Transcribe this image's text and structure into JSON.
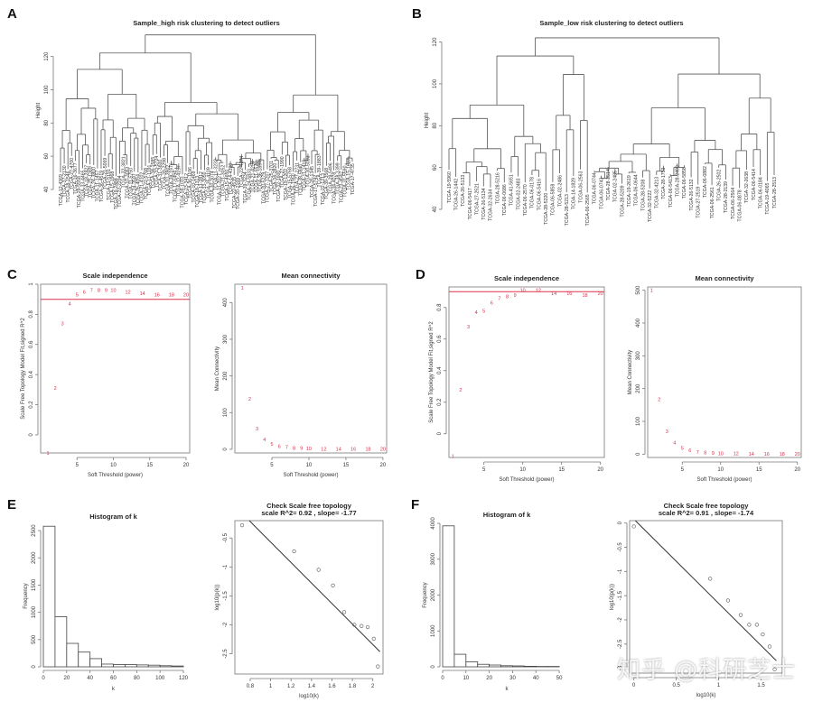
{
  "figure": {
    "panel_letters": [
      "A",
      "B",
      "C",
      "D",
      "E",
      "F"
    ],
    "watermark": "知乎 @科研芝士"
  },
  "chart_data": [
    {
      "id": "A",
      "type": "dendrogram",
      "title": "Sample_high risk clustering to detect outliers",
      "ylabel": "Height",
      "yticks": [
        40,
        60,
        80,
        100,
        120
      ],
      "ylim": [
        40,
        135
      ],
      "root_height": 133,
      "leaf_count": 80,
      "visible_labels": [
        "TCGA-14-0871",
        "TCGA-28-5218",
        "TCGA-06-5410",
        "TCGA-06-5856",
        "TCGA-27-1835",
        "TCGA-12-3616",
        "TCGA-06-3129",
        "TCGA-19-1390",
        "TCGA-26-3652"
      ],
      "major_merges": [
        {
          "height": 133,
          "desc": "root"
        },
        {
          "height": 123,
          "desc": "main split"
        },
        {
          "height": 114
        },
        {
          "height": 110
        },
        {
          "height": 105
        },
        {
          "height": 99,
          "desc": "outlier branch TCGA-06-5410"
        },
        {
          "height": 97
        }
      ]
    },
    {
      "id": "B",
      "type": "dendrogram",
      "title": "Sample_low risk clustering to detect outliers",
      "ylabel": "Height",
      "yticks": [
        40,
        60,
        80,
        100,
        120
      ],
      "ylim": [
        40,
        125
      ],
      "root_height": 122,
      "leaves": [
        "TCGA-19-5960",
        "TCGA-26-1442",
        "TCGA-26-5133",
        "TCGA-06-5417",
        "TCGA-27-2521",
        "TCGA-26-5134",
        "TCGA-32-2634",
        "TCGA-28-5216",
        "TCGA-06-0686",
        "TCGA-41-5651",
        "TCGA-02-2483",
        "TCGA-06-2570",
        "TCGA-06-0178",
        "TCGA-06-5416",
        "TCGA-28-5220",
        "TCGA-06-5858",
        "TCGA-02-2486",
        "TCGA-28-5213",
        "TCGA-14-1829",
        "TCGA-06-2563",
        "TCGA-06-2565",
        "TCGA-06-0744",
        "TCGA-06-0743",
        "TCGA-28-2514",
        "TCGA-02-2485",
        "TCGA-28-5209",
        "TCGA-19-2619",
        "TCGA-06-0644",
        "TCGA-28-5208",
        "TCGA-32-5222",
        "TCGA-32-4213",
        "TCGA-28-1753",
        "TCGA-06-5413",
        "TCGA-28-2499",
        "TCGA-06-5858",
        "TCGA-26-5132",
        "TCGA-27-2519",
        "TCGA-06-0882",
        "TCGA-06-2561",
        "TCGA-26-2502",
        "TCGA-28-2139",
        "TCGA-06-2564",
        "TCGA-06-0878",
        "TCGA-32-2638",
        "TCGA-06-5414",
        "TCGA-06-0184",
        "TCGA-19-4065",
        "TCGA-28-2513"
      ],
      "major_merges": [
        {
          "height": 122,
          "desc": "root"
        },
        {
          "height": 107
        },
        {
          "height": 103
        },
        {
          "height": 97
        },
        {
          "height": 93
        },
        {
          "height": 90
        },
        {
          "height": 84
        }
      ]
    },
    {
      "id": "C-left",
      "type": "scatter",
      "title": "Scale independence",
      "xlabel": "Soft Threshold (power)",
      "ylabel": "Scale Free Topology Model Fit,signed R^2",
      "xlim": [
        0,
        20.5
      ],
      "ylim": [
        -0.12,
        1.0
      ],
      "xticks": [
        5,
        10,
        15,
        20
      ],
      "yticks": [
        0.0,
        0.2,
        0.4,
        0.6,
        0.8,
        1.0
      ],
      "hline": 0.9,
      "hline_color": "#e0304a",
      "point_color": "#d6304a",
      "points": [
        {
          "x": 1,
          "y": -0.12
        },
        {
          "x": 2,
          "y": 0.31
        },
        {
          "x": 3,
          "y": 0.74
        },
        {
          "x": 4,
          "y": 0.87
        },
        {
          "x": 5,
          "y": 0.93
        },
        {
          "x": 6,
          "y": 0.95
        },
        {
          "x": 7,
          "y": 0.96
        },
        {
          "x": 8,
          "y": 0.96
        },
        {
          "x": 9,
          "y": 0.96
        },
        {
          "x": 10,
          "y": 0.96
        },
        {
          "x": 12,
          "y": 0.95
        },
        {
          "x": 14,
          "y": 0.94
        },
        {
          "x": 16,
          "y": 0.93
        },
        {
          "x": 18,
          "y": 0.93
        },
        {
          "x": 20,
          "y": 0.93
        }
      ]
    },
    {
      "id": "C-right",
      "type": "scatter",
      "title": "Mean connectivity",
      "xlabel": "Soft Threshold (power)",
      "ylabel": "Mean Connectivity",
      "xlim": [
        0,
        20.5
      ],
      "ylim": [
        -10,
        450
      ],
      "xticks": [
        5,
        10,
        15,
        20
      ],
      "yticks": [
        0,
        100,
        200,
        300,
        400
      ],
      "point_color": "#d6304a",
      "points": [
        {
          "x": 1,
          "y": 440
        },
        {
          "x": 2,
          "y": 137
        },
        {
          "x": 3,
          "y": 56
        },
        {
          "x": 4,
          "y": 27
        },
        {
          "x": 5,
          "y": 15
        },
        {
          "x": 6,
          "y": 9
        },
        {
          "x": 7,
          "y": 6
        },
        {
          "x": 8,
          "y": 4
        },
        {
          "x": 9,
          "y": 3
        },
        {
          "x": 10,
          "y": 2
        },
        {
          "x": 12,
          "y": 1
        },
        {
          "x": 14,
          "y": 1
        },
        {
          "x": 16,
          "y": 1
        },
        {
          "x": 18,
          "y": 1
        },
        {
          "x": 20,
          "y": 1
        }
      ]
    },
    {
      "id": "D-left",
      "type": "scatter",
      "title": "Scale independence",
      "xlabel": "Soft Threshold (power)",
      "ylabel": "Scale Free Topology Model Fit,signed R^2",
      "xlim": [
        0.5,
        20.5
      ],
      "ylim": [
        -0.15,
        0.93
      ],
      "xticks": [
        5,
        10,
        15,
        20
      ],
      "yticks": [
        0.0,
        0.2,
        0.4,
        0.6,
        0.8
      ],
      "hline": 0.9,
      "hline_color": "#e0304a",
      "point_color": "#d6304a",
      "points": [
        {
          "x": 1,
          "y": -0.14
        },
        {
          "x": 2,
          "y": 0.28
        },
        {
          "x": 3,
          "y": 0.68
        },
        {
          "x": 4,
          "y": 0.77
        },
        {
          "x": 5,
          "y": 0.78
        },
        {
          "x": 6,
          "y": 0.83
        },
        {
          "x": 7,
          "y": 0.86
        },
        {
          "x": 8,
          "y": 0.87
        },
        {
          "x": 9,
          "y": 0.88
        },
        {
          "x": 10,
          "y": 0.91
        },
        {
          "x": 12,
          "y": 0.91
        },
        {
          "x": 14,
          "y": 0.89
        },
        {
          "x": 16,
          "y": 0.89
        },
        {
          "x": 18,
          "y": 0.88
        },
        {
          "x": 20,
          "y": 0.89
        }
      ]
    },
    {
      "id": "D-right",
      "type": "scatter",
      "title": "Mean connectivity",
      "xlabel": "Soft Threshold (power)",
      "ylabel": "Mean Connectivity",
      "xlim": [
        0.5,
        20.5
      ],
      "ylim": [
        -10,
        510
      ],
      "xticks": [
        5,
        10,
        15,
        20
      ],
      "yticks": [
        0,
        100,
        200,
        300,
        400,
        500
      ],
      "point_color": "#d6304a",
      "points": [
        {
          "x": 1,
          "y": 500
        },
        {
          "x": 2,
          "y": 167
        },
        {
          "x": 3,
          "y": 70
        },
        {
          "x": 4,
          "y": 35
        },
        {
          "x": 5,
          "y": 19
        },
        {
          "x": 6,
          "y": 12
        },
        {
          "x": 7,
          "y": 7
        },
        {
          "x": 8,
          "y": 5
        },
        {
          "x": 9,
          "y": 4
        },
        {
          "x": 10,
          "y": 3
        },
        {
          "x": 12,
          "y": 2
        },
        {
          "x": 14,
          "y": 1
        },
        {
          "x": 16,
          "y": 1
        },
        {
          "x": 18,
          "y": 1
        },
        {
          "x": 20,
          "y": 1
        }
      ]
    },
    {
      "id": "E-left",
      "type": "bar",
      "title": "Histogram of k",
      "xlabel": "k",
      "ylabel": "Frequency",
      "bin_width": 10,
      "bin_start": 0,
      "values": [
        2580,
        920,
        430,
        270,
        150,
        50,
        40,
        40,
        35,
        30,
        20,
        15
      ],
      "xlim": [
        0,
        120
      ],
      "ylim": [
        0,
        2600
      ],
      "xticks": [
        0,
        20,
        40,
        60,
        80,
        100,
        120
      ],
      "yticks": [
        0,
        500,
        1000,
        1500,
        2000,
        2500
      ]
    },
    {
      "id": "E-right",
      "type": "scatter",
      "title": "Check Scale free topology",
      "subtitle": "scale R^2= 0.92 , slope= -1.77",
      "xlabel": "log10(k)",
      "ylabel": "log10(p(k))",
      "xlim": [
        0.65,
        2.1
      ],
      "ylim": [
        -2.85,
        -0.2
      ],
      "xticks": [
        0.8,
        1.0,
        1.2,
        1.4,
        1.6,
        1.8,
        2.0
      ],
      "yticks": [
        -2.5,
        -2.0,
        -1.5,
        -1.0,
        -0.5
      ],
      "points": [
        {
          "x": 0.72,
          "y": -0.28
        },
        {
          "x": 1.23,
          "y": -0.73
        },
        {
          "x": 1.47,
          "y": -1.05
        },
        {
          "x": 1.61,
          "y": -1.32
        },
        {
          "x": 1.72,
          "y": -1.78
        },
        {
          "x": 1.82,
          "y": -2.0
        },
        {
          "x": 1.89,
          "y": -2.02
        },
        {
          "x": 1.95,
          "y": -2.04
        },
        {
          "x": 2.01,
          "y": -2.24
        },
        {
          "x": 2.05,
          "y": -2.72
        }
      ],
      "fit": {
        "slope": -1.77,
        "intercept": 1.2
      }
    },
    {
      "id": "F-left",
      "type": "bar",
      "title": "Histogram of k",
      "xlabel": "k",
      "ylabel": "Frequency",
      "bin_width": 5,
      "bin_start": 0,
      "values": [
        3930,
        350,
        140,
        70,
        50,
        30,
        25,
        15,
        10,
        10
      ],
      "xlim": [
        0,
        55
      ],
      "ylim": [
        0,
        4000
      ],
      "xticks": [
        0,
        10,
        20,
        30,
        40,
        50
      ],
      "yticks": [
        0,
        1000,
        2000,
        3000,
        4000
      ]
    },
    {
      "id": "F-right",
      "type": "scatter",
      "title": "Check Scale free topology",
      "subtitle": "scale R^2= 0.91 , slope= -1.74",
      "xlabel": "log10(k)",
      "ylabel": "log10(p(k))",
      "xlim": [
        -0.05,
        1.75
      ],
      "ylim": [
        -3.1,
        0.05
      ],
      "xticks": [
        0.0,
        0.5,
        1.0,
        1.5
      ],
      "yticks": [
        0.0,
        -0.5,
        -1.0,
        -1.5,
        -2.0,
        -2.5,
        -3.0
      ],
      "points": [
        {
          "x": 0.0,
          "y": -0.07
        },
        {
          "x": 0.9,
          "y": -1.15
        },
        {
          "x": 1.11,
          "y": -1.6
        },
        {
          "x": 1.26,
          "y": -1.9
        },
        {
          "x": 1.36,
          "y": -2.1
        },
        {
          "x": 1.45,
          "y": -2.1
        },
        {
          "x": 1.52,
          "y": -2.3
        },
        {
          "x": 1.6,
          "y": -2.55
        },
        {
          "x": 1.66,
          "y": -3.02
        }
      ],
      "fit": {
        "slope": -1.74,
        "intercept": 0.08
      }
    }
  ]
}
